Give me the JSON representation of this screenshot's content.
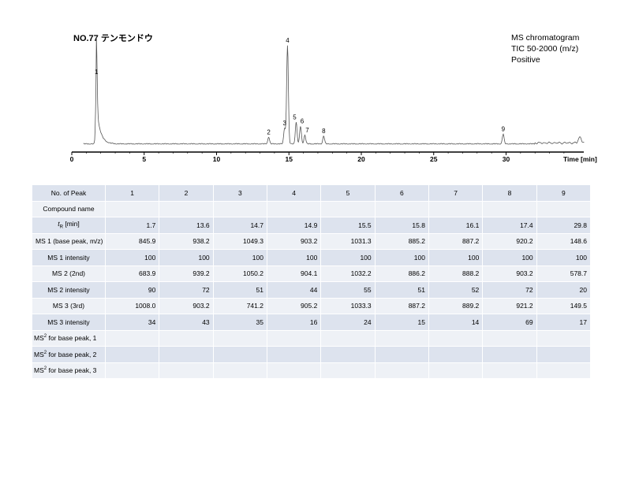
{
  "title": "NO.77 テンモンドウ",
  "info": [
    "MS chromatogram",
    "TIC 50-2000 (m/z)",
    "Positive"
  ],
  "chart_data": {
    "type": "line",
    "title": "NO.77 テンモンドウ",
    "xlabel": "Time [min]",
    "ylabel": "",
    "xlim": [
      0,
      35.5
    ],
    "x_ticks": [
      0,
      5,
      10,
      15,
      20,
      25,
      30
    ],
    "ylim": [
      0,
      100
    ],
    "grid": false,
    "peaks": [
      {
        "label": "1",
        "x": 1.7,
        "y": 68
      },
      {
        "label": "2",
        "x": 13.6,
        "y": 7
      },
      {
        "label": "3",
        "x": 14.7,
        "y": 16
      },
      {
        "label": "4",
        "x": 14.9,
        "y": 100
      },
      {
        "label": "5",
        "x": 15.5,
        "y": 22
      },
      {
        "label": "6",
        "x": 15.8,
        "y": 18
      },
      {
        "label": "7",
        "x": 16.1,
        "y": 9
      },
      {
        "label": "8",
        "x": 17.4,
        "y": 8
      },
      {
        "label": "9",
        "x": 29.8,
        "y": 10
      }
    ]
  },
  "table": {
    "header_label": "No. of Peak",
    "peak_numbers": [
      "1",
      "2",
      "3",
      "4",
      "5",
      "6",
      "7",
      "8",
      "9"
    ],
    "rows": [
      {
        "label": "Compound name",
        "values": [
          "",
          "",
          "",
          "",
          "",
          "",
          "",
          "",
          ""
        ]
      },
      {
        "label_main": "t",
        "label_sub": "R",
        "label_rest": " [min]",
        "values": [
          "1.7",
          "13.6",
          "14.7",
          "14.9",
          "15.5",
          "15.8",
          "16.1",
          "17.4",
          "29.8"
        ]
      },
      {
        "label": "MS 1 (base peak, m/z)",
        "values": [
          "845.9",
          "938.2",
          "1049.3",
          "903.2",
          "1031.3",
          "885.2",
          "887.2",
          "920.2",
          "148.6"
        ]
      },
      {
        "label": "MS 1 intensity",
        "values": [
          "100",
          "100",
          "100",
          "100",
          "100",
          "100",
          "100",
          "100",
          "100"
        ]
      },
      {
        "label": "MS 2 (2nd)",
        "values": [
          "683.9",
          "939.2",
          "1050.2",
          "904.1",
          "1032.2",
          "886.2",
          "888.2",
          "903.2",
          "578.7"
        ]
      },
      {
        "label": "MS 2 intensity",
        "values": [
          "90",
          "72",
          "51",
          "44",
          "55",
          "51",
          "52",
          "72",
          "20"
        ]
      },
      {
        "label": "MS 3 (3rd)",
        "values": [
          "1008.0",
          "903.2",
          "741.2",
          "905.2",
          "1033.3",
          "887.2",
          "889.2",
          "921.2",
          "149.5"
        ]
      },
      {
        "label": "MS 3 intensity",
        "values": [
          "34",
          "43",
          "35",
          "16",
          "24",
          "15",
          "14",
          "69",
          "17"
        ]
      },
      {
        "label_main": "MS",
        "label_sup": "2",
        "label_rest": " for base peak, 1",
        "values": [
          "",
          "",
          "",
          "",
          "",
          "",
          "",
          "",
          ""
        ]
      },
      {
        "label_main": "MS",
        "label_sup": "2",
        "label_rest": " for base peak, 2",
        "values": [
          "",
          "",
          "",
          "",
          "",
          "",
          "",
          "",
          ""
        ]
      },
      {
        "label_main": "MS",
        "label_sup": "2",
        "label_rest": " for base peak, 3",
        "values": [
          "",
          "",
          "",
          "",
          "",
          "",
          "",
          "",
          ""
        ]
      }
    ]
  }
}
